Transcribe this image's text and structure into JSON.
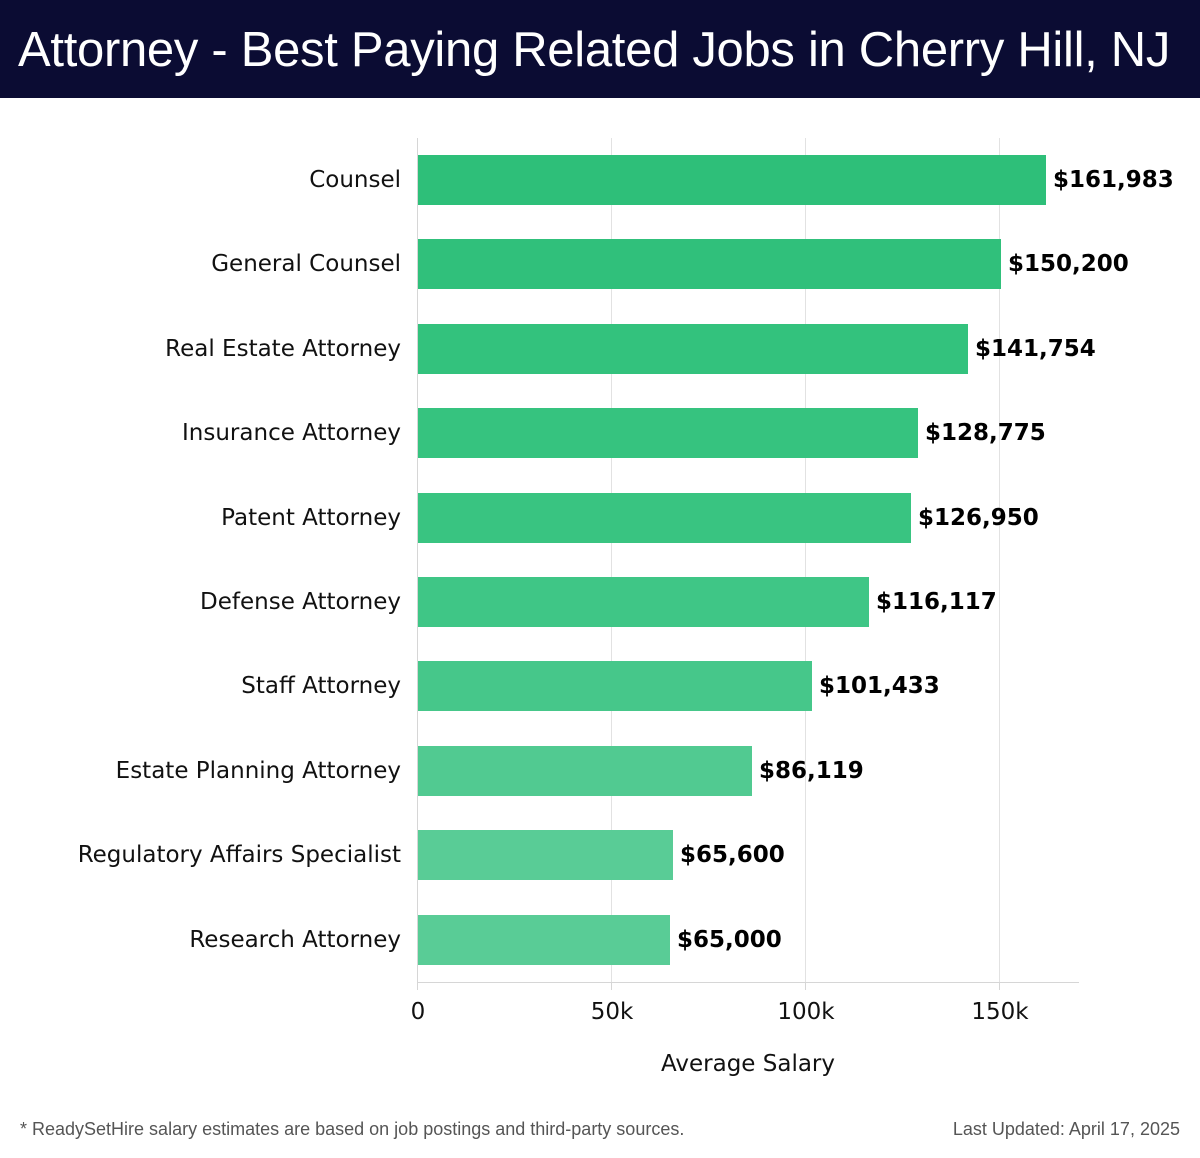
{
  "header": {
    "title": "Attorney - Best Paying Related Jobs in Cherry Hill, NJ",
    "background": "#0b0c33"
  },
  "footer": {
    "note": "* ReadySetHire salary estimates are based on job postings and third-party sources.",
    "last_updated": "Last Updated: April 17, 2025"
  },
  "chart_data": {
    "type": "bar",
    "orientation": "horizontal",
    "title": "Attorney - Best Paying Related Jobs in Cherry Hill, NJ",
    "xlabel": "Average Salary",
    "ylabel": "",
    "xlim": [
      0,
      170000
    ],
    "grid": true,
    "legend": null,
    "x_ticks": [
      {
        "value": 0,
        "label": "0"
      },
      {
        "value": 50000,
        "label": "50k"
      },
      {
        "value": 100000,
        "label": "100k"
      },
      {
        "value": 150000,
        "label": "150k"
      }
    ],
    "categories": [
      "Counsel",
      "General Counsel",
      "Real Estate Attorney",
      "Insurance Attorney",
      "Patent Attorney",
      "Defense Attorney",
      "Staff Attorney",
      "Estate Planning Attorney",
      "Regulatory Affairs Specialist",
      "Research Attorney"
    ],
    "values": [
      161983,
      150200,
      141754,
      128775,
      126950,
      116117,
      101433,
      86119,
      65600,
      65000
    ],
    "value_labels": [
      "$161,983",
      "$150,200",
      "$141,754",
      "$128,775",
      "$126,950",
      "$116,117",
      "$101,433",
      "$86,119",
      "$65,600",
      "$65,000"
    ],
    "bar_colors": [
      "#2ebf79",
      "#30c07b",
      "#33c27d",
      "#36c37f",
      "#39c481",
      "#3fc686",
      "#46c78a",
      "#51ca91",
      "#59cc96",
      "#59cc96"
    ]
  }
}
